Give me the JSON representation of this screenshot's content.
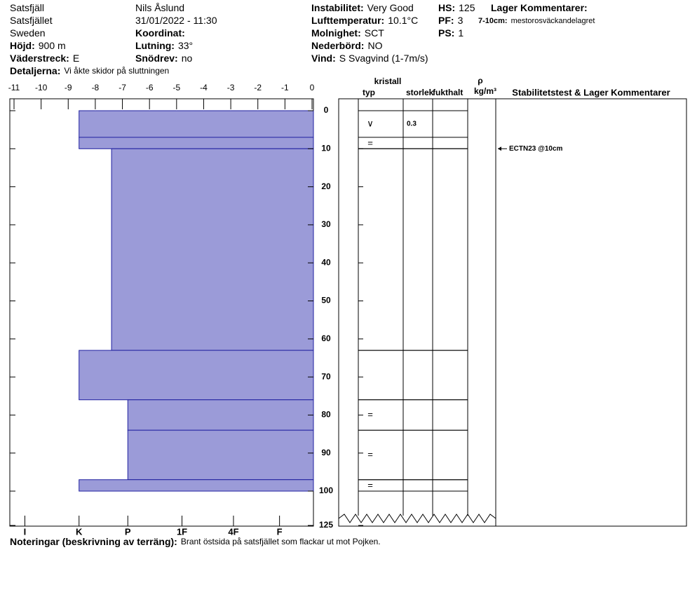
{
  "header": {
    "fields": [
      {
        "value": "Satsfjäll"
      },
      {
        "value": "Satsfjället"
      },
      {
        "value": "Sweden"
      },
      {
        "label": "Höjd:",
        "value": "900 m"
      },
      {
        "label": "Väderstreck:",
        "value": "E"
      },
      {
        "value": "Nils Åslund"
      },
      {
        "value": "31/01/2022 - 11:30"
      },
      {
        "label": "Koordinat:"
      },
      {
        "label": "Lutning:",
        "value": "33°"
      },
      {
        "label": "Snödrev:",
        "value": "no"
      },
      {
        "label": "Detaljerna:",
        "value": "Vi åkte skidor på sluttningen"
      },
      {
        "label": "Instabilitet:",
        "value": "Very Good"
      },
      {
        "label": "Lufttemperatur:",
        "value": "10.1°C"
      },
      {
        "label": "Molnighet:",
        "value": "SCT"
      },
      {
        "label": "Nederbörd:",
        "value": "NO"
      },
      {
        "label": "Vind:",
        "value": "S Svagvind (1-7m/s)"
      },
      {
        "label": "HS:",
        "value": "125"
      },
      {
        "label": "PF:",
        "value": "3"
      },
      {
        "label": "PS:",
        "value": "1"
      },
      {
        "label": "Lager Kommentarer:"
      },
      {
        "label": "7-10cm:",
        "value": "mestorosväckandelagret"
      }
    ]
  },
  "notes": {
    "label": "Noteringar (beskrivning av terräng):",
    "value": "Brant östsida på satsfjället som flackar ut mot Pojken."
  },
  "columns": {
    "crystal": "kristall",
    "type": "typ",
    "size": "storlek",
    "moisture": "fukthalt",
    "rho": "ρ",
    "density_unit": "kg/m³",
    "stability": "Stabilitetstest & Lager Kommentarer"
  },
  "chart_data": {
    "type": "snow-profile",
    "layer_tops": [
      0,
      7,
      10,
      63,
      76,
      84,
      97
    ],
    "layer_bottoms": [
      7,
      10,
      63,
      76,
      84,
      97,
      100
    ],
    "values": [
      -8.6,
      -8.6,
      -7.4,
      -8.6,
      -6.8,
      -6.8,
      -8.6
    ],
    "grain_types": [
      "∨",
      "=",
      null,
      null,
      "=",
      "=",
      "="
    ],
    "grain_sizes": [
      0.3,
      null,
      null,
      null,
      null,
      null,
      null
    ],
    "color": "#9b9bd8",
    "edge_color": "#2020a0",
    "xlim": [
      -11,
      0
    ],
    "xticks": [
      -11,
      -10,
      -9,
      -8,
      -7,
      -6,
      -5,
      -4,
      -3,
      -2,
      -1,
      0
    ],
    "x2ticks": [
      {
        "value": -10.6,
        "label": "I"
      },
      {
        "value": -8.6,
        "label": "K"
      },
      {
        "value": -6.8,
        "label": "P"
      },
      {
        "value": -4.8,
        "label": "1F"
      },
      {
        "value": -2.9,
        "label": "4F"
      },
      {
        "value": -1.2,
        "label": "F"
      }
    ],
    "ylim": [
      0,
      125
    ],
    "yticks": [
      0,
      10,
      20,
      30,
      40,
      50,
      60,
      70,
      80,
      90,
      100,
      125
    ],
    "stability_tests": [
      {
        "depth": 10,
        "label": "ECTN23 @10cm"
      }
    ]
  }
}
